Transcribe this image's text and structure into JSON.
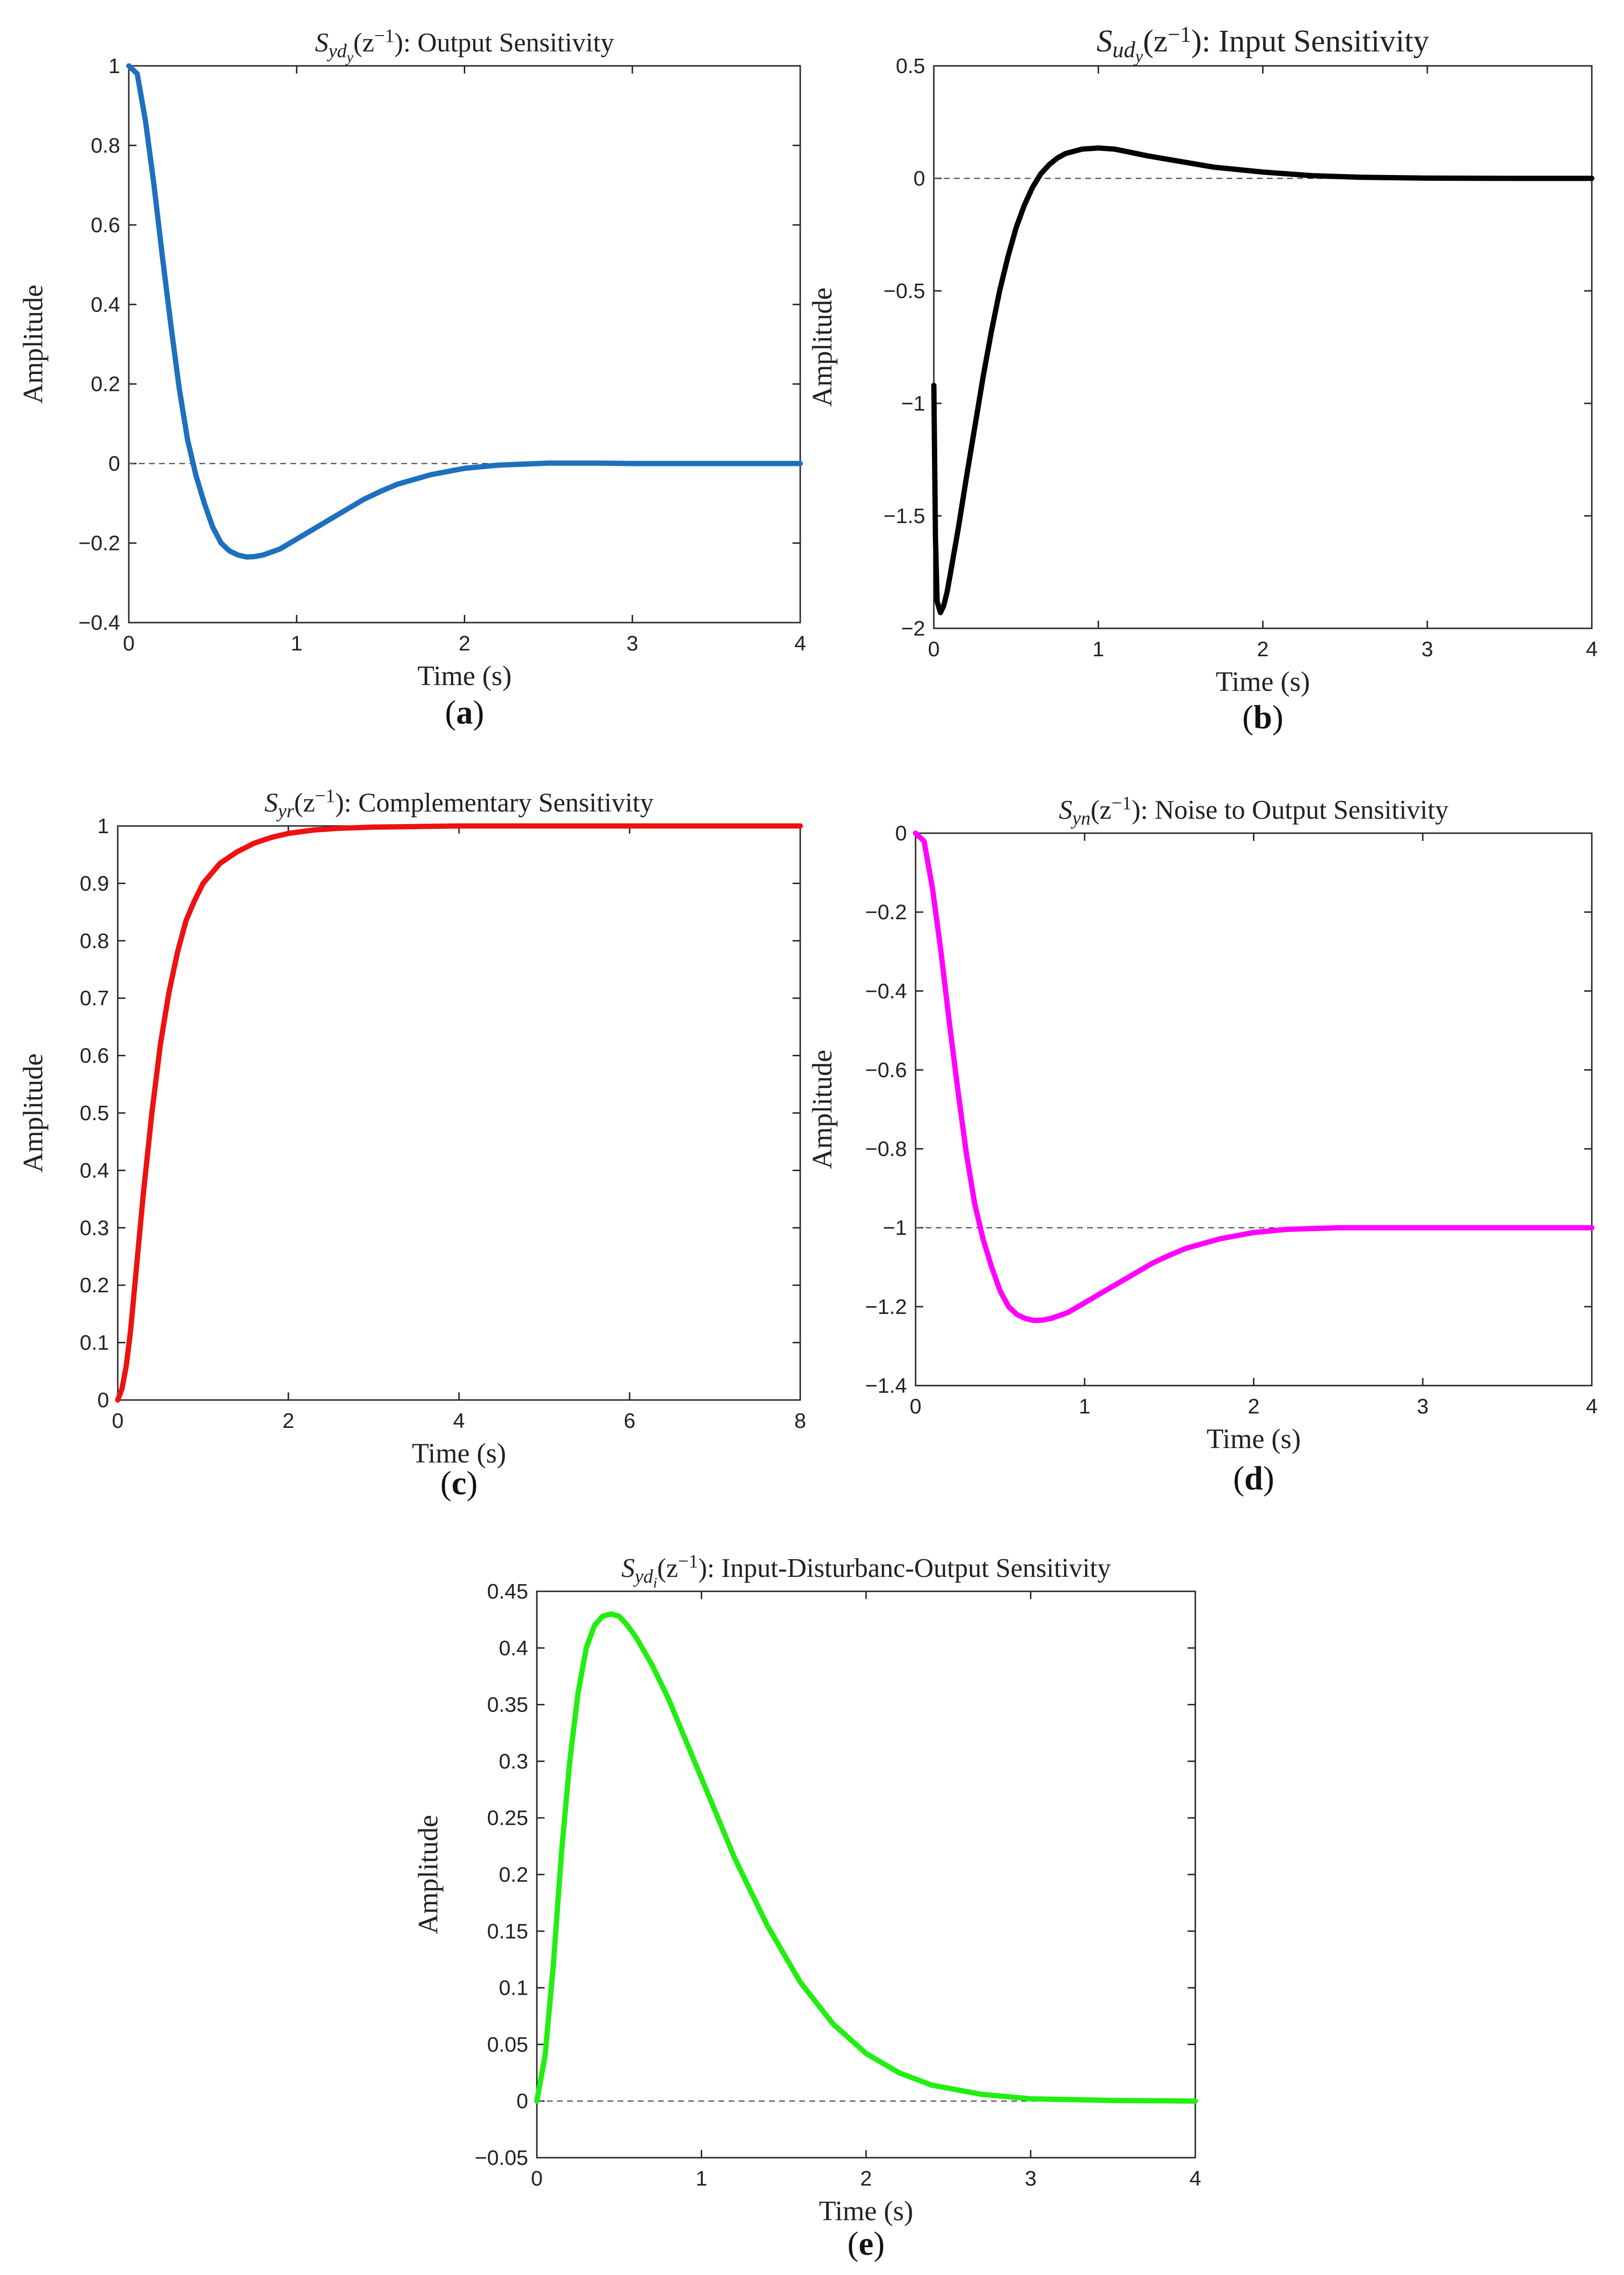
{
  "chart_data": [
    {
      "id": "a",
      "type": "line",
      "panel_label": "a",
      "title": {
        "prefix": "S",
        "sub": "yd",
        "subsub": "y",
        "arg": "(z",
        "sup": "−1",
        "rest": "): Output Sensitivity"
      },
      "xlabel": "Time (s)",
      "ylabel": "Amplitude",
      "xlim": [
        0,
        4
      ],
      "ylim": [
        -0.4,
        1
      ],
      "xticks": [
        0,
        1,
        2,
        3,
        4
      ],
      "yticks": [
        -0.4,
        -0.2,
        0,
        0.2,
        0.4,
        0.6,
        0.8,
        1
      ],
      "ytick_labels": [
        "−0.4",
        "−0.2",
        "0",
        "0.2",
        "0.4",
        "0.6",
        "0.8",
        "1"
      ],
      "xtick_labels": [
        "0",
        "1",
        "2",
        "3",
        "4"
      ],
      "reference_line": 0,
      "series": [
        {
          "name": "Sydy",
          "color": "#1f6fbf",
          "x": [
            0,
            0.05,
            0.1,
            0.15,
            0.2,
            0.25,
            0.3,
            0.35,
            0.4,
            0.45,
            0.5,
            0.55,
            0.6,
            0.65,
            0.7,
            0.75,
            0.8,
            0.9,
            1.0,
            1.1,
            1.2,
            1.3,
            1.4,
            1.5,
            1.6,
            1.8,
            2.0,
            2.2,
            2.5,
            2.8,
            3.0,
            3.5,
            4.0
          ],
          "y": [
            1,
            0.98,
            0.86,
            0.7,
            0.52,
            0.35,
            0.19,
            0.06,
            -0.03,
            -0.1,
            -0.16,
            -0.2,
            -0.22,
            -0.23,
            -0.235,
            -0.234,
            -0.23,
            -0.215,
            -0.19,
            -0.165,
            -0.14,
            -0.115,
            -0.09,
            -0.07,
            -0.052,
            -0.028,
            -0.012,
            -0.004,
            0.001,
            0.001,
            0.0,
            0.0,
            0.0
          ]
        }
      ]
    },
    {
      "id": "b",
      "type": "line",
      "panel_label": "b",
      "title": {
        "prefix": "S",
        "sub": "ud",
        "subsub": "y",
        "arg": "(z",
        "sup": "−1",
        "rest": "): Input Sensitivity"
      },
      "xlabel": "Time (s)",
      "ylabel": "Amplitude",
      "xlim": [
        0,
        4
      ],
      "ylim": [
        -2,
        0.5
      ],
      "xticks": [
        0,
        1,
        2,
        3,
        4
      ],
      "yticks": [
        -2,
        -1.5,
        -1,
        -0.5,
        0,
        0.5
      ],
      "ytick_labels": [
        "−2",
        "−1.5",
        "−1",
        "−0.5",
        "0",
        "0.5"
      ],
      "xtick_labels": [
        "0",
        "1",
        "2",
        "3",
        "4"
      ],
      "reference_line": 0,
      "series": [
        {
          "name": "Sudy",
          "color": "#000000",
          "x": [
            0,
            0.01,
            0.02,
            0.04,
            0.06,
            0.08,
            0.1,
            0.15,
            0.2,
            0.25,
            0.3,
            0.35,
            0.4,
            0.45,
            0.5,
            0.55,
            0.6,
            0.65,
            0.7,
            0.75,
            0.8,
            0.9,
            1.0,
            1.1,
            1.2,
            1.3,
            1.5,
            1.7,
            2.0,
            2.3,
            2.6,
            3.0,
            3.5,
            4.0
          ],
          "y": [
            -0.92,
            -1.6,
            -1.88,
            -1.93,
            -1.9,
            -1.84,
            -1.76,
            -1.55,
            -1.32,
            -1.1,
            -0.88,
            -0.68,
            -0.5,
            -0.35,
            -0.22,
            -0.12,
            -0.04,
            0.02,
            0.06,
            0.09,
            0.11,
            0.13,
            0.135,
            0.13,
            0.115,
            0.1,
            0.075,
            0.05,
            0.028,
            0.012,
            0.005,
            0.001,
            0.0,
            0.0
          ]
        }
      ]
    },
    {
      "id": "c",
      "type": "line",
      "panel_label": "c",
      "title": {
        "prefix": "S",
        "sub": "yr",
        "subsub": "",
        "arg": "(z",
        "sup": "−1",
        "rest": "): Complementary Sensitivity"
      },
      "xlabel": "Time (s)",
      "ylabel": "Amplitude",
      "xlim": [
        0,
        8
      ],
      "ylim": [
        0,
        1
      ],
      "xticks": [
        0,
        2,
        4,
        6,
        8
      ],
      "yticks": [
        0,
        0.1,
        0.2,
        0.3,
        0.4,
        0.5,
        0.6,
        0.7,
        0.8,
        0.9,
        1
      ],
      "ytick_labels": [
        "0",
        "0.1",
        "0.2",
        "0.3",
        "0.4",
        "0.5",
        "0.6",
        "0.7",
        "0.8",
        "0.9",
        "1"
      ],
      "xtick_labels": [
        "0",
        "2",
        "4",
        "6",
        "8"
      ],
      "reference_line": null,
      "series": [
        {
          "name": "Syr",
          "color": "#ee1111",
          "x": [
            0,
            0.05,
            0.1,
            0.15,
            0.2,
            0.3,
            0.4,
            0.5,
            0.6,
            0.7,
            0.8,
            0.9,
            1.0,
            1.2,
            1.4,
            1.6,
            1.8,
            2.0,
            2.3,
            2.6,
            3.0,
            3.5,
            4.0,
            5.0,
            6.0,
            8.0
          ],
          "y": [
            0,
            0.02,
            0.06,
            0.12,
            0.2,
            0.36,
            0.5,
            0.62,
            0.71,
            0.78,
            0.835,
            0.87,
            0.9,
            0.935,
            0.955,
            0.97,
            0.98,
            0.987,
            0.993,
            0.996,
            0.998,
            0.999,
            1.0,
            1.0,
            1.0,
            1.0
          ]
        }
      ]
    },
    {
      "id": "d",
      "type": "line",
      "panel_label": "d",
      "title": {
        "prefix": "S",
        "sub": "yn",
        "subsub": "",
        "arg": "(z",
        "sup": "−1",
        "rest": "): Noise to Output Sensitivity"
      },
      "xlabel": "Time (s)",
      "ylabel": "Amplitude",
      "xlim": [
        0,
        4
      ],
      "ylim": [
        -1.4,
        0
      ],
      "xticks": [
        0,
        1,
        2,
        3,
        4
      ],
      "yticks": [
        -1.4,
        -1.2,
        -1,
        -0.8,
        -0.6,
        -0.4,
        -0.2,
        0
      ],
      "ytick_labels": [
        "−1.4",
        "−1.2",
        "−1",
        "−0.8",
        "−0.6",
        "−0.4",
        "−0.2",
        "0"
      ],
      "xtick_labels": [
        "0",
        "1",
        "2",
        "3",
        "4"
      ],
      "reference_line": -1,
      "series": [
        {
          "name": "Syn",
          "color": "#ff00ff",
          "x": [
            0,
            0.05,
            0.1,
            0.15,
            0.2,
            0.25,
            0.3,
            0.35,
            0.4,
            0.45,
            0.5,
            0.55,
            0.6,
            0.65,
            0.7,
            0.75,
            0.8,
            0.9,
            1.0,
            1.1,
            1.2,
            1.3,
            1.4,
            1.5,
            1.6,
            1.8,
            2.0,
            2.2,
            2.5,
            2.8,
            3.0,
            3.5,
            4.0
          ],
          "y": [
            0,
            -0.02,
            -0.14,
            -0.3,
            -0.48,
            -0.65,
            -0.81,
            -0.94,
            -1.03,
            -1.1,
            -1.16,
            -1.2,
            -1.22,
            -1.23,
            -1.235,
            -1.234,
            -1.23,
            -1.215,
            -1.19,
            -1.165,
            -1.14,
            -1.115,
            -1.09,
            -1.07,
            -1.052,
            -1.028,
            -1.012,
            -1.004,
            -1.0,
            -1.0,
            -1.0,
            -1.0,
            -1.0
          ]
        }
      ]
    },
    {
      "id": "e",
      "type": "line",
      "panel_label": "e",
      "title": {
        "prefix": "S",
        "sub": "yd",
        "subsub": "i",
        "arg": "(z",
        "sup": "−1",
        "rest": "): Input-Disturbanc-Output Sensitivity"
      },
      "xlabel": "Time (s)",
      "ylabel": "Amplitude",
      "xlim": [
        0,
        4
      ],
      "ylim": [
        -0.05,
        0.45
      ],
      "xticks": [
        0,
        1,
        2,
        3,
        4
      ],
      "yticks": [
        -0.05,
        0,
        0.05,
        0.1,
        0.15,
        0.2,
        0.25,
        0.3,
        0.35,
        0.4,
        0.45
      ],
      "ytick_labels": [
        "−0.05",
        "0",
        "0.05",
        "0.1",
        "0.15",
        "0.2",
        "0.25",
        "0.3",
        "0.35",
        "0.4",
        "0.45"
      ],
      "xtick_labels": [
        "0",
        "1",
        "2",
        "3",
        "4"
      ],
      "reference_line": 0,
      "series": [
        {
          "name": "Sydi",
          "color": "#22ee11",
          "x": [
            0,
            0.05,
            0.1,
            0.15,
            0.2,
            0.25,
            0.3,
            0.35,
            0.4,
            0.45,
            0.5,
            0.55,
            0.6,
            0.7,
            0.8,
            0.9,
            1.0,
            1.1,
            1.2,
            1.4,
            1.6,
            1.8,
            2.0,
            2.2,
            2.4,
            2.7,
            3.0,
            3.5,
            4.0
          ],
          "y": [
            0,
            0.04,
            0.12,
            0.22,
            0.3,
            0.36,
            0.4,
            0.42,
            0.428,
            0.43,
            0.428,
            0.42,
            0.41,
            0.385,
            0.355,
            0.32,
            0.285,
            0.25,
            0.215,
            0.155,
            0.105,
            0.068,
            0.042,
            0.025,
            0.014,
            0.006,
            0.002,
            0.0005,
            0.0
          ]
        }
      ]
    }
  ]
}
